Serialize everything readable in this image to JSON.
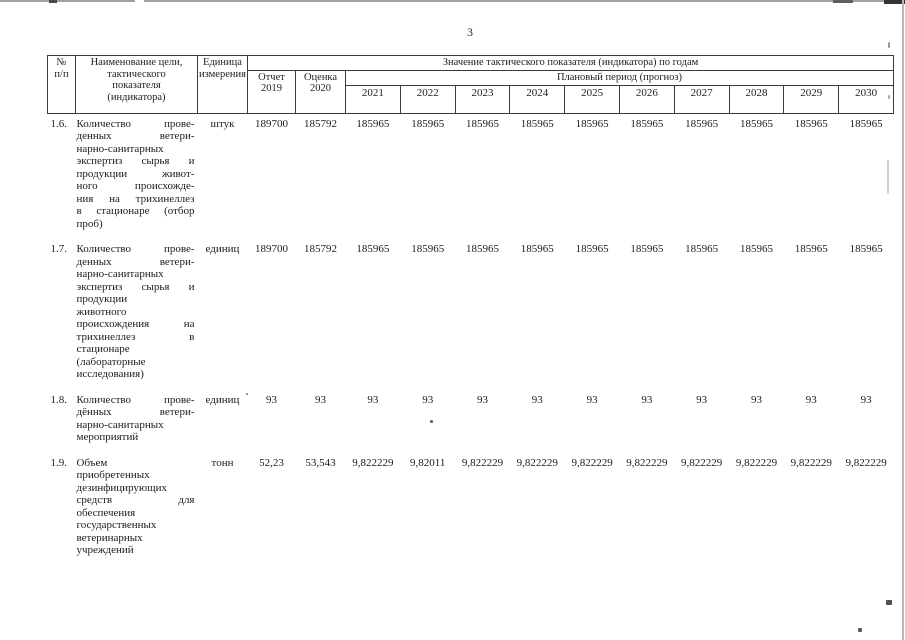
{
  "page": {
    "number": "3"
  },
  "table": {
    "headers": {
      "num": [
        "№",
        "п/п"
      ],
      "name": [
        "Наименование цели,",
        "тактического",
        "показателя",
        "(индикатора)"
      ],
      "unit": [
        "Единица",
        "измерения"
      ],
      "values_group": "Значение тактического показателя (индикатора) по годам",
      "report": [
        "Отчет",
        "2019"
      ],
      "estimate": [
        "Оценка",
        "2020"
      ],
      "plan_group": "Плановый период (прогноз)",
      "plan_years": [
        "2021",
        "2022",
        "2023",
        "2024",
        "2025",
        "2026",
        "2027",
        "2028",
        "2029",
        "2030"
      ]
    },
    "rows": [
      {
        "num": "1.6.",
        "name_lines": [
          "Количество прове-",
          "денных ветери-",
          "нарно-санитарных",
          "экспертиз сырья и",
          "продукции живот-",
          "ного происхожде-",
          "ния на трихинеллез",
          "в стационаре (отбор",
          "проб)"
        ],
        "unit": "штук",
        "values": [
          "189700",
          "185792",
          "185965",
          "185965",
          "185965",
          "185965",
          "185965",
          "185965",
          "185965",
          "185965",
          "185965",
          "185965"
        ]
      },
      {
        "num": "1.7.",
        "name_lines": [
          "Количество прове-",
          "денных ветери-",
          "нарно-санитарных",
          "экспертиз сырья и",
          "продукции",
          "животного",
          "происхождения на",
          "трихинеллез в",
          "стационаре",
          "(лабораторные",
          "исследования)"
        ],
        "unit": "единиц",
        "values": [
          "189700",
          "185792",
          "185965",
          "185965",
          "185965",
          "185965",
          "185965",
          "185965",
          "185965",
          "185965",
          "185965",
          "185965"
        ]
      },
      {
        "num": "1.8.",
        "name_lines": [
          "Количество прове-",
          "дённых ветери-",
          "нарно-санитарных",
          "мероприятий"
        ],
        "unit": "единиц",
        "values": [
          "93",
          "93",
          "93",
          "93",
          "93",
          "93",
          "93",
          "93",
          "93",
          "93",
          "93",
          "93"
        ]
      },
      {
        "num": "1.9.",
        "name_lines": [
          "Объем",
          "приобретенных",
          "дезинфицирующих",
          "средств для",
          "обеспечения",
          "государственных",
          "ветеринарных",
          "учреждений"
        ],
        "unit": "тонн",
        "values": [
          "52,23",
          "53,543",
          "9,822229",
          "9,82011",
          "9,822229",
          "9,822229",
          "9,822229",
          "9,822229",
          "9,822229",
          "9,822229",
          "9,822229",
          "9,822229"
        ]
      }
    ]
  }
}
